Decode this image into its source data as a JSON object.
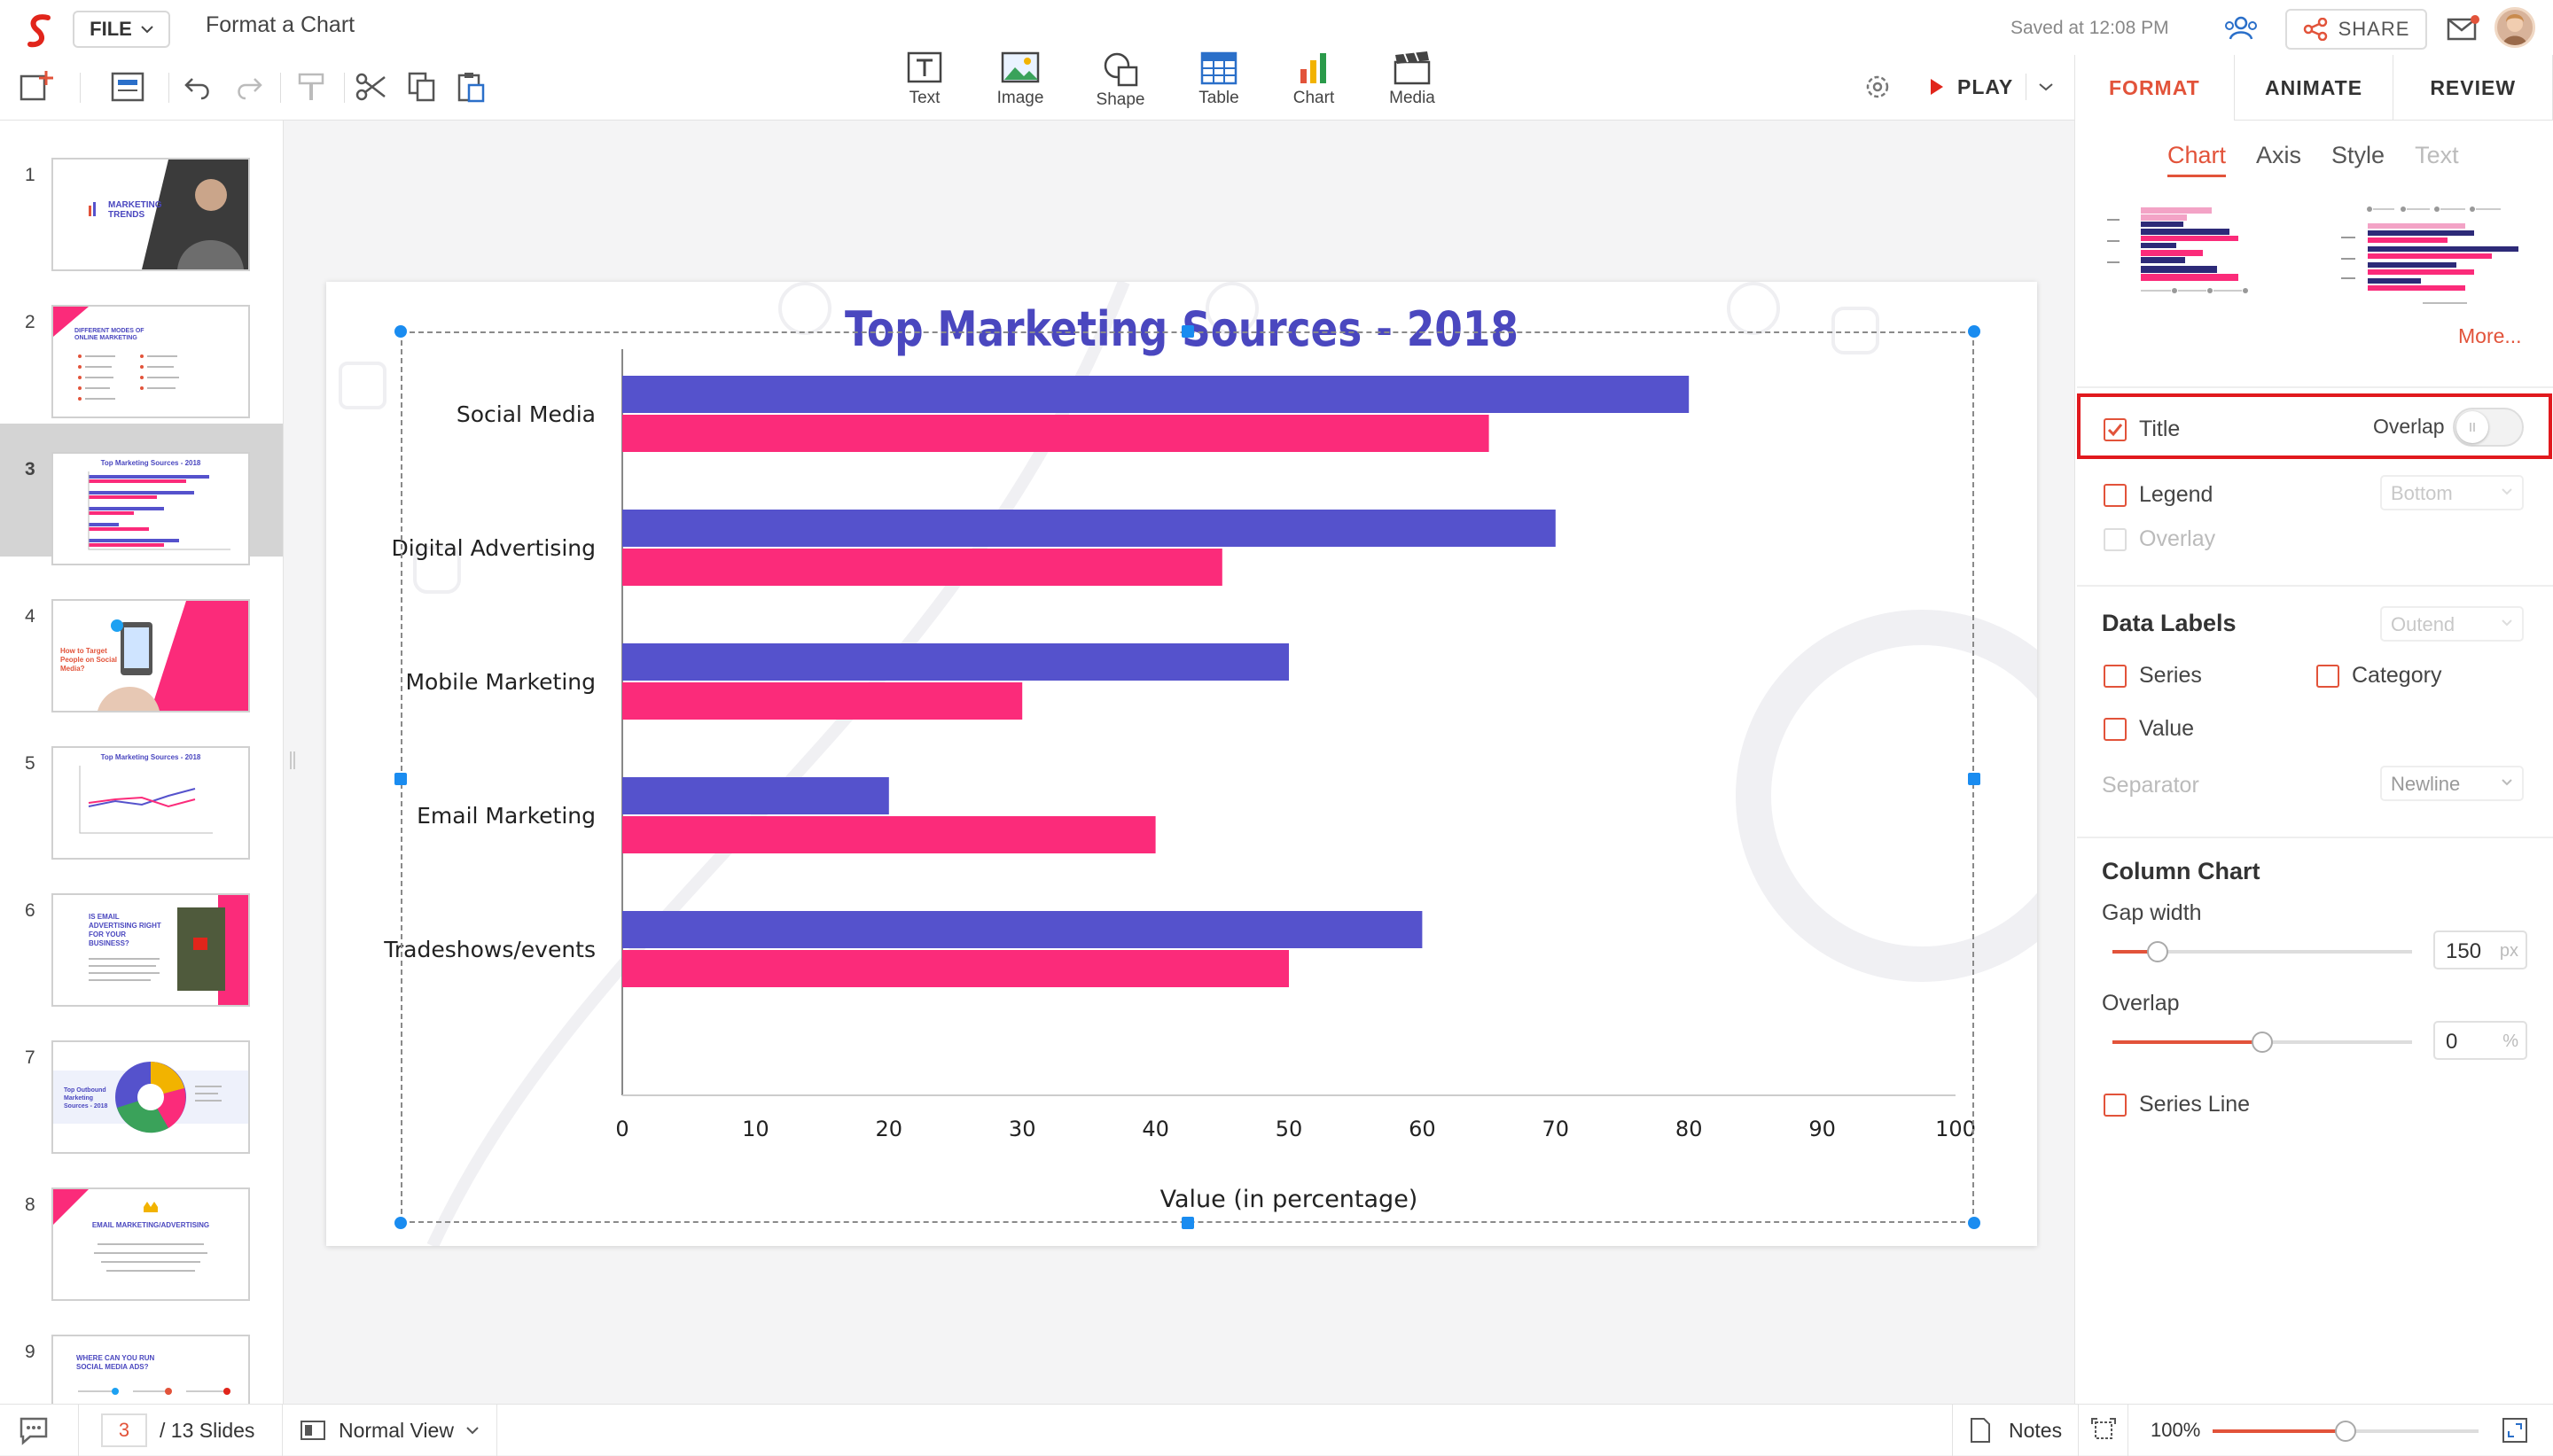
{
  "app": {
    "file_label": "FILE",
    "doc_title": "Format a Chart",
    "saved": "Saved at 12:08 PM",
    "share_label": "SHARE",
    "play_label": "PLAY"
  },
  "insert": [
    {
      "label": "Text",
      "icon": "text-box-icon"
    },
    {
      "label": "Image",
      "icon": "image-icon"
    },
    {
      "label": "Shape",
      "icon": "shape-icon"
    },
    {
      "label": "Table",
      "icon": "table-icon"
    },
    {
      "label": "Chart",
      "icon": "chart-icon"
    },
    {
      "label": "Media",
      "icon": "media-icon"
    }
  ],
  "panel": {
    "tabs": [
      "FORMAT",
      "ANIMATE",
      "REVIEW"
    ],
    "active_tab": "FORMAT",
    "subtabs": [
      "Chart",
      "Axis",
      "Style",
      "Text"
    ],
    "more": "More...",
    "title_label": "Title",
    "title_checked": true,
    "overlap_label": "Overlap",
    "overlap_on": false,
    "legend_label": "Legend",
    "legend_pos": "Bottom",
    "overlay_label": "Overlay",
    "data_labels_title": "Data Labels",
    "data_labels_pos": "Outend",
    "series_label": "Series",
    "category_label": "Category",
    "value_label": "Value",
    "separator_label": "Separator",
    "separator_value": "Newline",
    "column_chart_title": "Column Chart",
    "gap_width_label": "Gap width",
    "gap_width_value": "150",
    "gap_width_unit": "px",
    "gap_width_level": 0.15,
    "overlap_field_label": "Overlap",
    "overlap_value": "0",
    "overlap_unit": "%",
    "overlap_level": 0.5,
    "series_line_label": "Series Line"
  },
  "slides": {
    "current": "3",
    "total_label": "/ 13 Slides",
    "selected_index": 3,
    "numbers": [
      "1",
      "2",
      "3",
      "4",
      "5",
      "6",
      "7",
      "8",
      "9"
    ],
    "s1": {
      "title": "MARKETING TRENDS"
    },
    "s2": {
      "title": "DIFFERENT MODES OF ONLINE MARKETING"
    },
    "s3": {
      "title": "Top Marketing Sources - 2018"
    },
    "s4": {
      "title": "How to Target People on Social Media?"
    },
    "s5": {
      "title": "Top Marketing Sources - 2018"
    },
    "s6": {
      "title": "IS EMAIL ADVERTISING RIGHT FOR YOUR BUSINESS?"
    },
    "s7": {
      "title": "Top Outbound Marketing Sources - 2018"
    },
    "s8": {
      "title": "EMAIL MARKETING/ADVERTISING"
    },
    "s9": {
      "title": "WHERE CAN YOU RUN SOCIAL MEDIA ADS?"
    }
  },
  "statusbar": {
    "view_label": "Normal View",
    "notes_label": "Notes",
    "zoom": "100%",
    "zoom_level": 0.5
  },
  "colors": {
    "accent": "#e2533a",
    "series_blue": "#5552cc",
    "series_pink": "#fb2b7a",
    "title_color": "#4a47bf",
    "highlight": "#e1191e"
  },
  "chart_data": {
    "type": "bar",
    "orientation": "horizontal",
    "title": "Top Marketing Sources - 2018",
    "xlabel": "Value (in percentage)",
    "ylabel": "",
    "categories": [
      "Social Media",
      "Digital Advertising",
      "Mobile Marketing",
      "Email Marketing",
      "Tradeshows/events"
    ],
    "series": [
      {
        "values": [
          80,
          70,
          50,
          20,
          60
        ],
        "color": "#5552cc"
      },
      {
        "values": [
          65,
          45,
          30,
          40,
          50
        ],
        "color": "#fb2b7a"
      }
    ],
    "xlim": [
      0,
      100
    ],
    "ticks": [
      "0",
      "10",
      "20",
      "30",
      "40",
      "50",
      "60",
      "70",
      "80",
      "90",
      "100"
    ],
    "legend": "none",
    "grid": false
  }
}
